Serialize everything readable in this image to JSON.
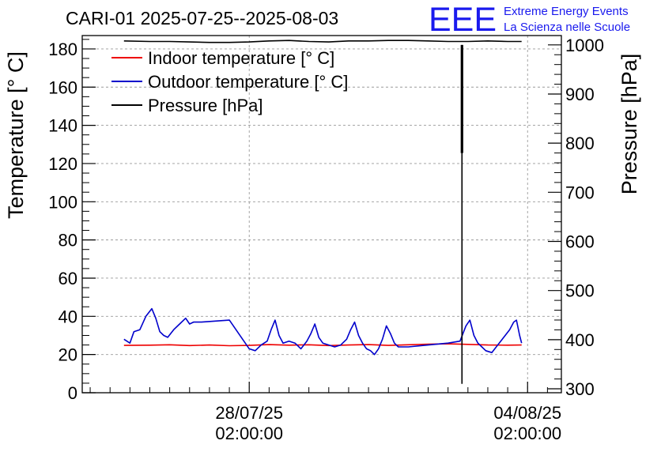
{
  "chart_data": {
    "type": "line",
    "title": "CARI-01 2025-07-25--2025-08-03",
    "logo": {
      "text": "EEE",
      "line1": "Extreme Energy Events",
      "line2": "La Scienza nelle Scuole",
      "color": "#1a1aee"
    },
    "ylabel": "Temperature [° C]",
    "y2label": "Pressure [hPa]",
    "ylim": [
      0,
      187
    ],
    "y2lim": [
      292,
      1019
    ],
    "yticks": [
      0,
      20,
      40,
      60,
      80,
      100,
      120,
      140,
      160,
      180
    ],
    "y2ticks": [
      300,
      400,
      500,
      600,
      700,
      800,
      900,
      1000
    ],
    "xlim": [
      -2.2,
      9.85
    ],
    "xticks": [
      {
        "x": 2.0,
        "line1": "28/07/25",
        "line2": "02:00:00"
      },
      {
        "x": 9.0,
        "line1": "04/08/25",
        "line2": "02:00:00"
      }
    ],
    "grid": true,
    "legend_position": "top-left",
    "series": [
      {
        "name": "Indoor temperature [° C]",
        "axis": "left",
        "color": "#ee0000",
        "x": [
          -1.15,
          -0.5,
          0.0,
          0.5,
          1.0,
          1.5,
          2.0,
          2.5,
          3.0,
          3.5,
          4.0,
          4.5,
          5.0,
          5.5,
          6.0,
          6.5,
          7.0,
          7.5,
          8.0,
          8.5,
          8.85
        ],
        "y": [
          24.8,
          24.9,
          25.1,
          24.7,
          25.0,
          24.6,
          24.8,
          25.2,
          24.9,
          25.1,
          24.7,
          25.0,
          25.2,
          24.8,
          25.1,
          25.4,
          25.6,
          25.3,
          25.0,
          24.9,
          25.0
        ]
      },
      {
        "name": "Outdoor temperature [° C]",
        "axis": "left",
        "color": "#0000cc",
        "x": [
          -1.15,
          -1.0,
          -0.9,
          -0.75,
          -0.6,
          -0.45,
          -0.35,
          -0.25,
          -0.15,
          -0.05,
          0.1,
          0.25,
          0.4,
          0.5,
          0.6,
          0.7,
          0.8,
          1.5,
          2.0,
          2.15,
          2.3,
          2.45,
          2.55,
          2.65,
          2.75,
          2.85,
          3.0,
          3.15,
          3.3,
          3.45,
          3.55,
          3.65,
          3.75,
          3.85,
          4.0,
          4.15,
          4.3,
          4.45,
          4.55,
          4.65,
          4.75,
          4.85,
          4.95,
          5.05,
          5.15,
          5.25,
          5.35,
          5.45,
          5.55,
          5.65,
          5.75,
          5.85,
          6.0,
          6.5,
          7.0,
          7.3,
          7.45,
          7.55,
          7.65,
          7.75,
          7.85,
          7.95,
          8.1,
          8.25,
          8.4,
          8.55,
          8.65,
          8.72,
          8.8,
          8.85
        ],
        "y": [
          28,
          26,
          32,
          33,
          40,
          44,
          39,
          32,
          30,
          29,
          33,
          36,
          39,
          36,
          37,
          37,
          37,
          38,
          23,
          22,
          25,
          27,
          33,
          38,
          30,
          26,
          27,
          26,
          23,
          27,
          31,
          36,
          29,
          26,
          25,
          24,
          25,
          28,
          33,
          37,
          30,
          26,
          23,
          22,
          20,
          23,
          28,
          35,
          31,
          26,
          24,
          24,
          24,
          25,
          26,
          27,
          35,
          38,
          30,
          26,
          24,
          22,
          21,
          25,
          29,
          33,
          37,
          38,
          30,
          26
        ]
      },
      {
        "name": "Pressure [hPa]",
        "axis": "right",
        "color": "#000000",
        "x": [
          -1.15,
          -0.5,
          0.0,
          0.5,
          1.0,
          1.5,
          2.0,
          2.5,
          3.0,
          3.5,
          4.0,
          4.5,
          5.0,
          5.5,
          6.0,
          6.5,
          7.0,
          7.35,
          7.5,
          8.0,
          8.5,
          8.85
        ],
        "y": [
          1008,
          1007,
          1007,
          1006,
          1005,
          1005,
          1006,
          1008,
          1009,
          1007,
          1006,
          1008,
          1008,
          1009,
          1009,
          1008,
          1007,
          1007,
          1007,
          1008,
          1007,
          1007
        ],
        "spike": {
          "x": 7.35,
          "ymin": 310,
          "ymax": 1000
        }
      }
    ]
  }
}
